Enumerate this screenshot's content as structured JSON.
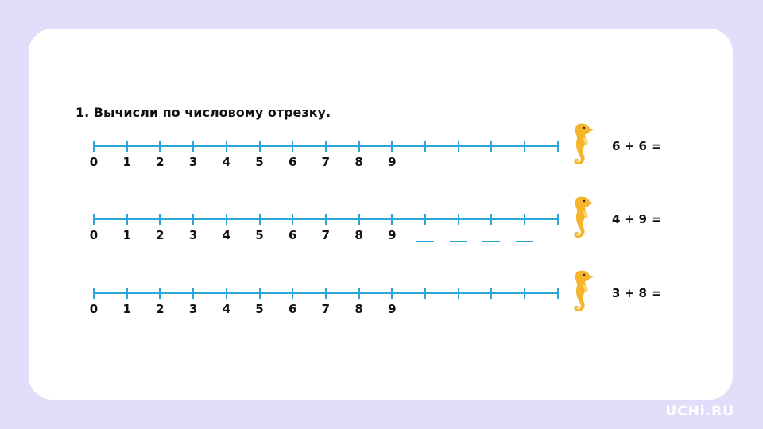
{
  "task": {
    "title": "1. Вычисли по числовому отрезку."
  },
  "number_line": {
    "labels": [
      "0",
      "1",
      "2",
      "3",
      "4",
      "5",
      "6",
      "7",
      "8",
      "9"
    ],
    "tick_count": 15,
    "blank_count": 4
  },
  "rows": [
    {
      "expression": "6 + 6 ="
    },
    {
      "expression": "4 + 9 ="
    },
    {
      "expression": "3 + 8 ="
    }
  ],
  "colors": {
    "line": "#2aa7d6",
    "background": "#e2defa",
    "seahorse": "#f5b42a"
  },
  "icons": {
    "mascot": "seahorse-icon"
  },
  "brand": {
    "logo": "UCHi.RU"
  }
}
